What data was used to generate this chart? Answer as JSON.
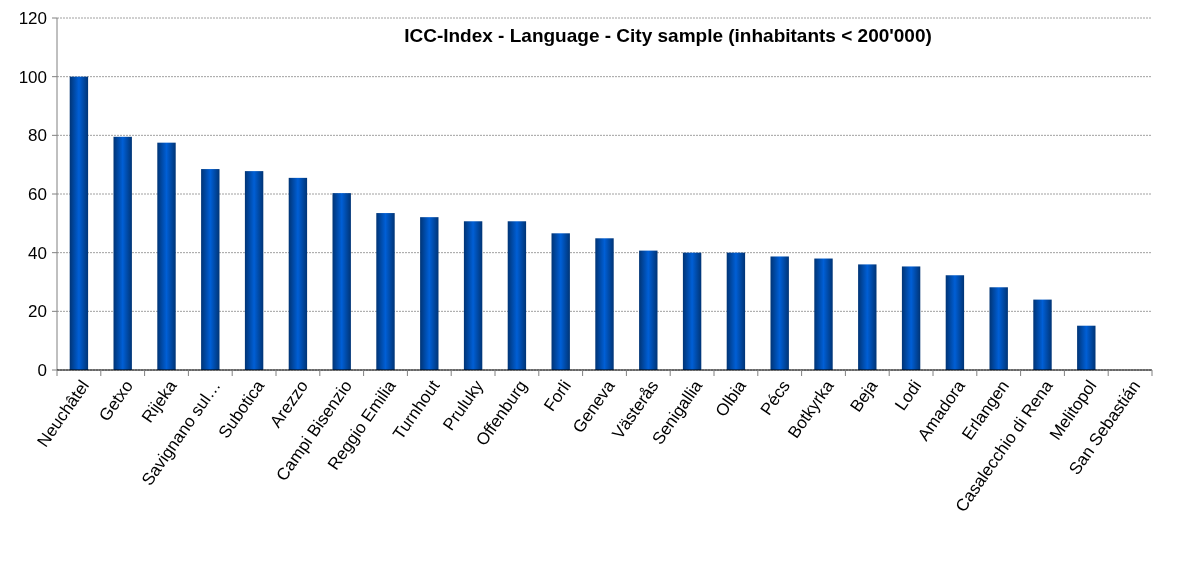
{
  "chart_data": {
    "type": "bar",
    "title": "ICC-Index - Language - City sample (inhabitants < 200'000)",
    "categories": [
      "Neuchâtel",
      "Getxo",
      "Rijeka",
      "Savignano sul…",
      "Subotica",
      "Arezzo",
      "Campi Bisenzio",
      "Reggio Emilia",
      "Turnhout",
      "Pruluky",
      "Offenburg",
      "Forli",
      "Geneva",
      "Västerås",
      "Senigallia",
      "Olbia",
      "Pécs",
      "Botkyrka",
      "Beja",
      "Lodi",
      "Amadora",
      "Erlangen",
      "Casalecchio di Rena",
      "Melitopol",
      "San Sebastián"
    ],
    "values": [
      100,
      79.5,
      77.5,
      68.5,
      67.8,
      65.5,
      60.3,
      53.5,
      52.1,
      50.7,
      50.7,
      46.6,
      44.9,
      40.7,
      40,
      40,
      38.7,
      38,
      36,
      35.3,
      32.3,
      28.2,
      24,
      15.1,
      0
    ],
    "color": "#0055c0",
    "ylim": [
      0,
      120
    ],
    "yticks": [
      0,
      20,
      40,
      60,
      80,
      100,
      120
    ],
    "grid": "y"
  }
}
